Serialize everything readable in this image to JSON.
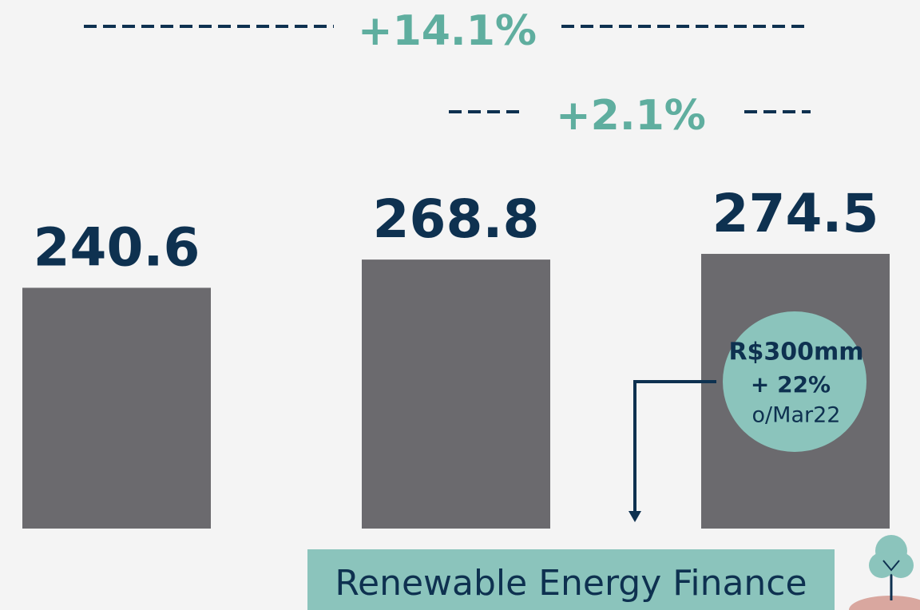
{
  "chart_data": {
    "type": "bar",
    "categories": [
      null,
      null,
      null
    ],
    "values": [
      240.6,
      268.8,
      274.5
    ],
    "color": "#6b6a6e",
    "ylim": [
      0,
      300
    ],
    "annotations": [
      "+14.1%",
      "+2.1%"
    ],
    "callout": [
      "R$300mm",
      "+ 22%",
      "o/Mar22"
    ],
    "footer": "Renewable Energy Finance"
  }
}
